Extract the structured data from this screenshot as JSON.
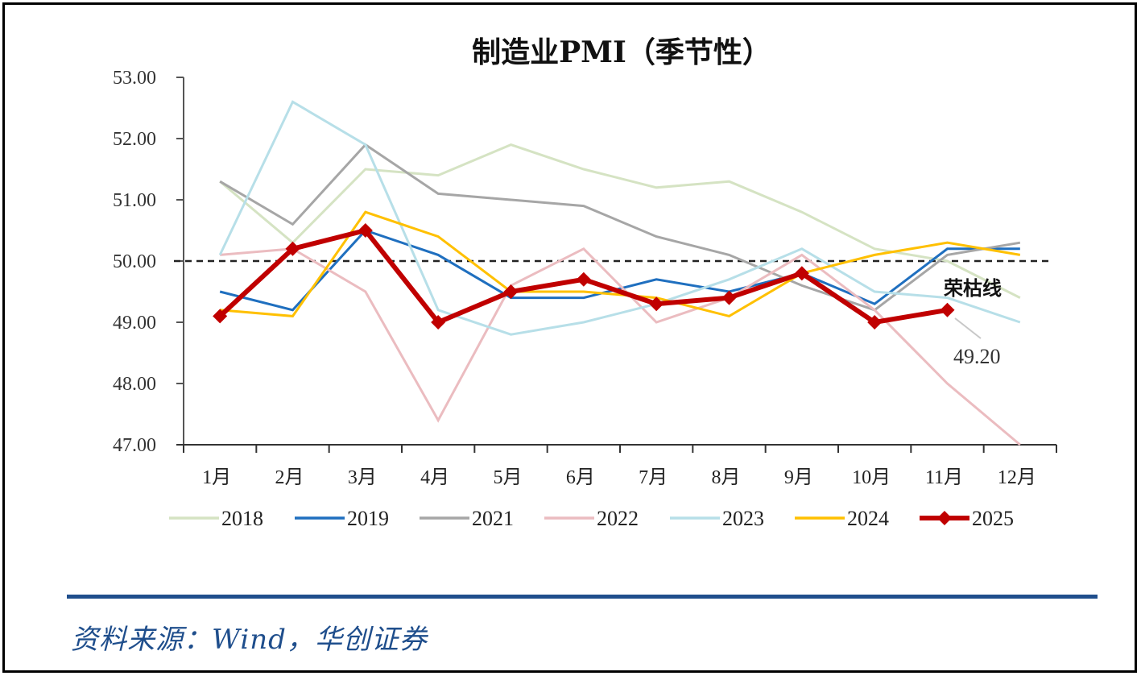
{
  "chart_data": {
    "type": "line",
    "title": "制造业PMI（季节性）",
    "xlabel": "",
    "ylabel": "",
    "categories": [
      "1月",
      "2月",
      "3月",
      "4月",
      "5月",
      "6月",
      "7月",
      "8月",
      "9月",
      "10月",
      "11月",
      "12月"
    ],
    "ylim": [
      47,
      53
    ],
    "yticks": [
      "47.00",
      "48.00",
      "49.00",
      "50.00",
      "51.00",
      "52.00",
      "53.00"
    ],
    "ytick_values": [
      47,
      48,
      49,
      50,
      51,
      52,
      53
    ],
    "grid": false,
    "legend_position": "bottom",
    "series": [
      {
        "name": "2018",
        "color": "#d5e3c3",
        "width": 3,
        "marker": false,
        "values": [
          51.3,
          50.3,
          51.5,
          51.4,
          51.9,
          51.5,
          51.2,
          51.3,
          50.8,
          50.2,
          50.0,
          49.4
        ]
      },
      {
        "name": "2019",
        "color": "#1f6fbf",
        "width": 3,
        "marker": false,
        "values": [
          49.5,
          49.2,
          50.5,
          50.1,
          49.4,
          49.4,
          49.7,
          49.5,
          49.8,
          49.3,
          50.2,
          50.2
        ]
      },
      {
        "name": "2021",
        "color": "#a6a6a6",
        "width": 3,
        "marker": false,
        "values": [
          51.3,
          50.6,
          51.9,
          51.1,
          51.0,
          50.9,
          50.4,
          50.1,
          49.6,
          49.2,
          50.1,
          50.3
        ]
      },
      {
        "name": "2022",
        "color": "#ebbcc0",
        "width": 3,
        "marker": false,
        "values": [
          50.1,
          50.2,
          49.5,
          47.4,
          49.6,
          50.2,
          49.0,
          49.4,
          50.1,
          49.2,
          48.0,
          47.0
        ]
      },
      {
        "name": "2023",
        "color": "#b7dfe8",
        "width": 3,
        "marker": false,
        "values": [
          50.1,
          52.6,
          51.9,
          49.2,
          48.8,
          49.0,
          49.3,
          49.7,
          50.2,
          49.5,
          49.4,
          49.0
        ]
      },
      {
        "name": "2024",
        "color": "#ffc000",
        "width": 3,
        "marker": false,
        "values": [
          49.2,
          49.1,
          50.8,
          50.4,
          49.5,
          49.5,
          49.4,
          49.1,
          49.8,
          50.1,
          50.3,
          50.1
        ]
      },
      {
        "name": "2025",
        "color": "#c00000",
        "width": 6,
        "marker": true,
        "values": [
          49.1,
          50.2,
          50.5,
          49.0,
          49.5,
          49.7,
          49.3,
          49.4,
          49.8,
          49.0,
          49.2,
          null
        ]
      }
    ],
    "reference_line": {
      "value": 50.0,
      "label": "荣枯线",
      "style": "dashed",
      "color": "#222222"
    },
    "annotations": [
      {
        "series": "2025",
        "category": "11月",
        "text": "49.20"
      }
    ]
  },
  "source": {
    "text": "资料来源：Wind，华创证券",
    "color": "#1f4e8c"
  }
}
